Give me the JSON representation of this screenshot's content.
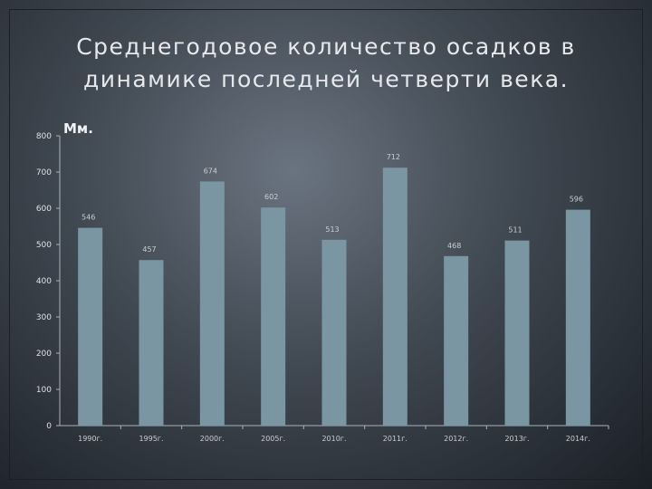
{
  "title": "Среднегодовое количество осадков в динамике последней четверти века.",
  "unit_label": "Мм.",
  "chart_data": {
    "type": "bar",
    "title": "Среднегодовое количество осадков в динамике последней четверти века.",
    "ylabel": "Мм.",
    "xlabel": "",
    "categories": [
      "1990г.",
      "1995г.",
      "2000г.",
      "2005г.",
      "2010г.",
      "2011г.",
      "2012г.",
      "2013г.",
      "2014г."
    ],
    "values": [
      546,
      457,
      674,
      602,
      513,
      712,
      468,
      511,
      596
    ],
    "data_labels": [
      "546",
      "457",
      "674",
      "602",
      "513",
      "712",
      "468",
      "511",
      "596"
    ],
    "ylim": [
      0,
      800
    ],
    "yticks": [
      0,
      100,
      200,
      300,
      400,
      500,
      600,
      700,
      800
    ],
    "grid": false,
    "bar_color": "#7a96a2",
    "axis_color": "#aab2b8"
  }
}
